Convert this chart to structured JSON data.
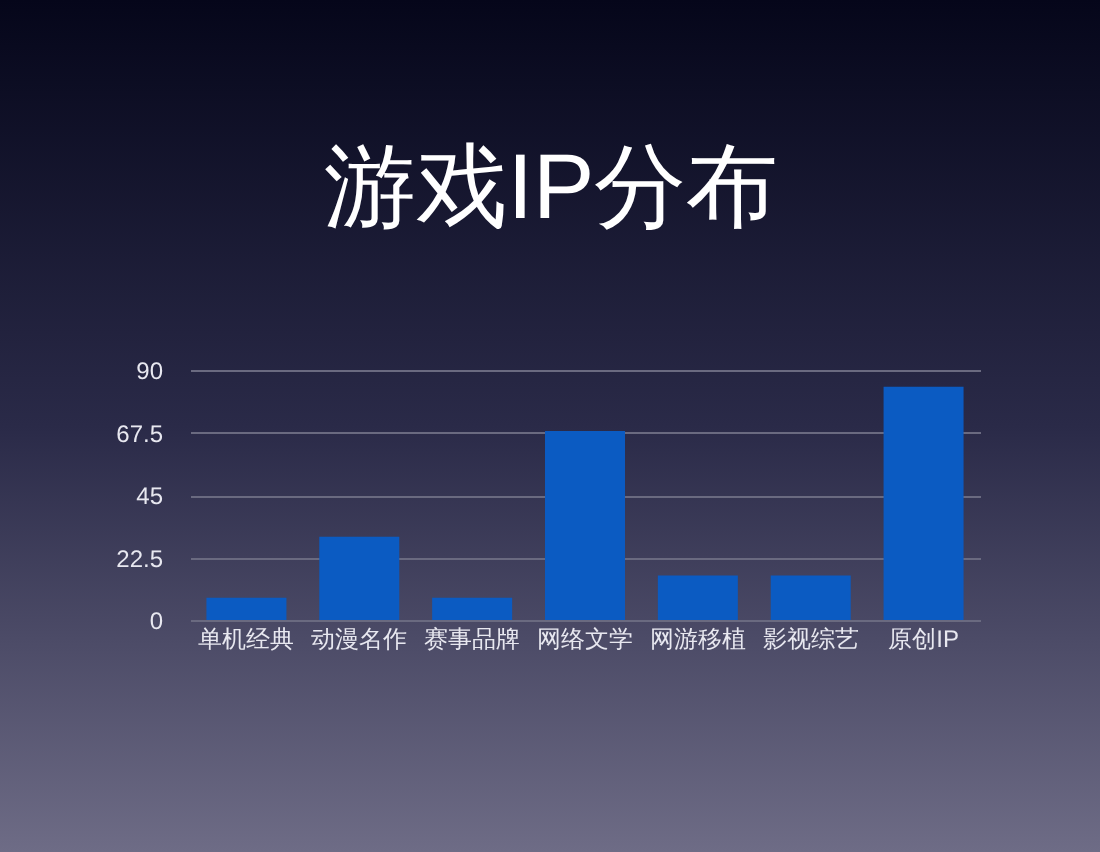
{
  "chart_data": {
    "type": "bar",
    "title": "游戏IP分布",
    "categories": [
      "单机经典",
      "动漫名作",
      "赛事品牌",
      "网络文学",
      "网游移植",
      "影视综艺",
      "原创IP"
    ],
    "values": [
      8,
      30,
      8,
      68,
      16,
      16,
      84
    ],
    "color": "#0b5bc2",
    "ylim": [
      0,
      90
    ],
    "yticks": [
      0,
      22.5,
      45,
      67.5,
      90
    ],
    "grid": "y"
  }
}
